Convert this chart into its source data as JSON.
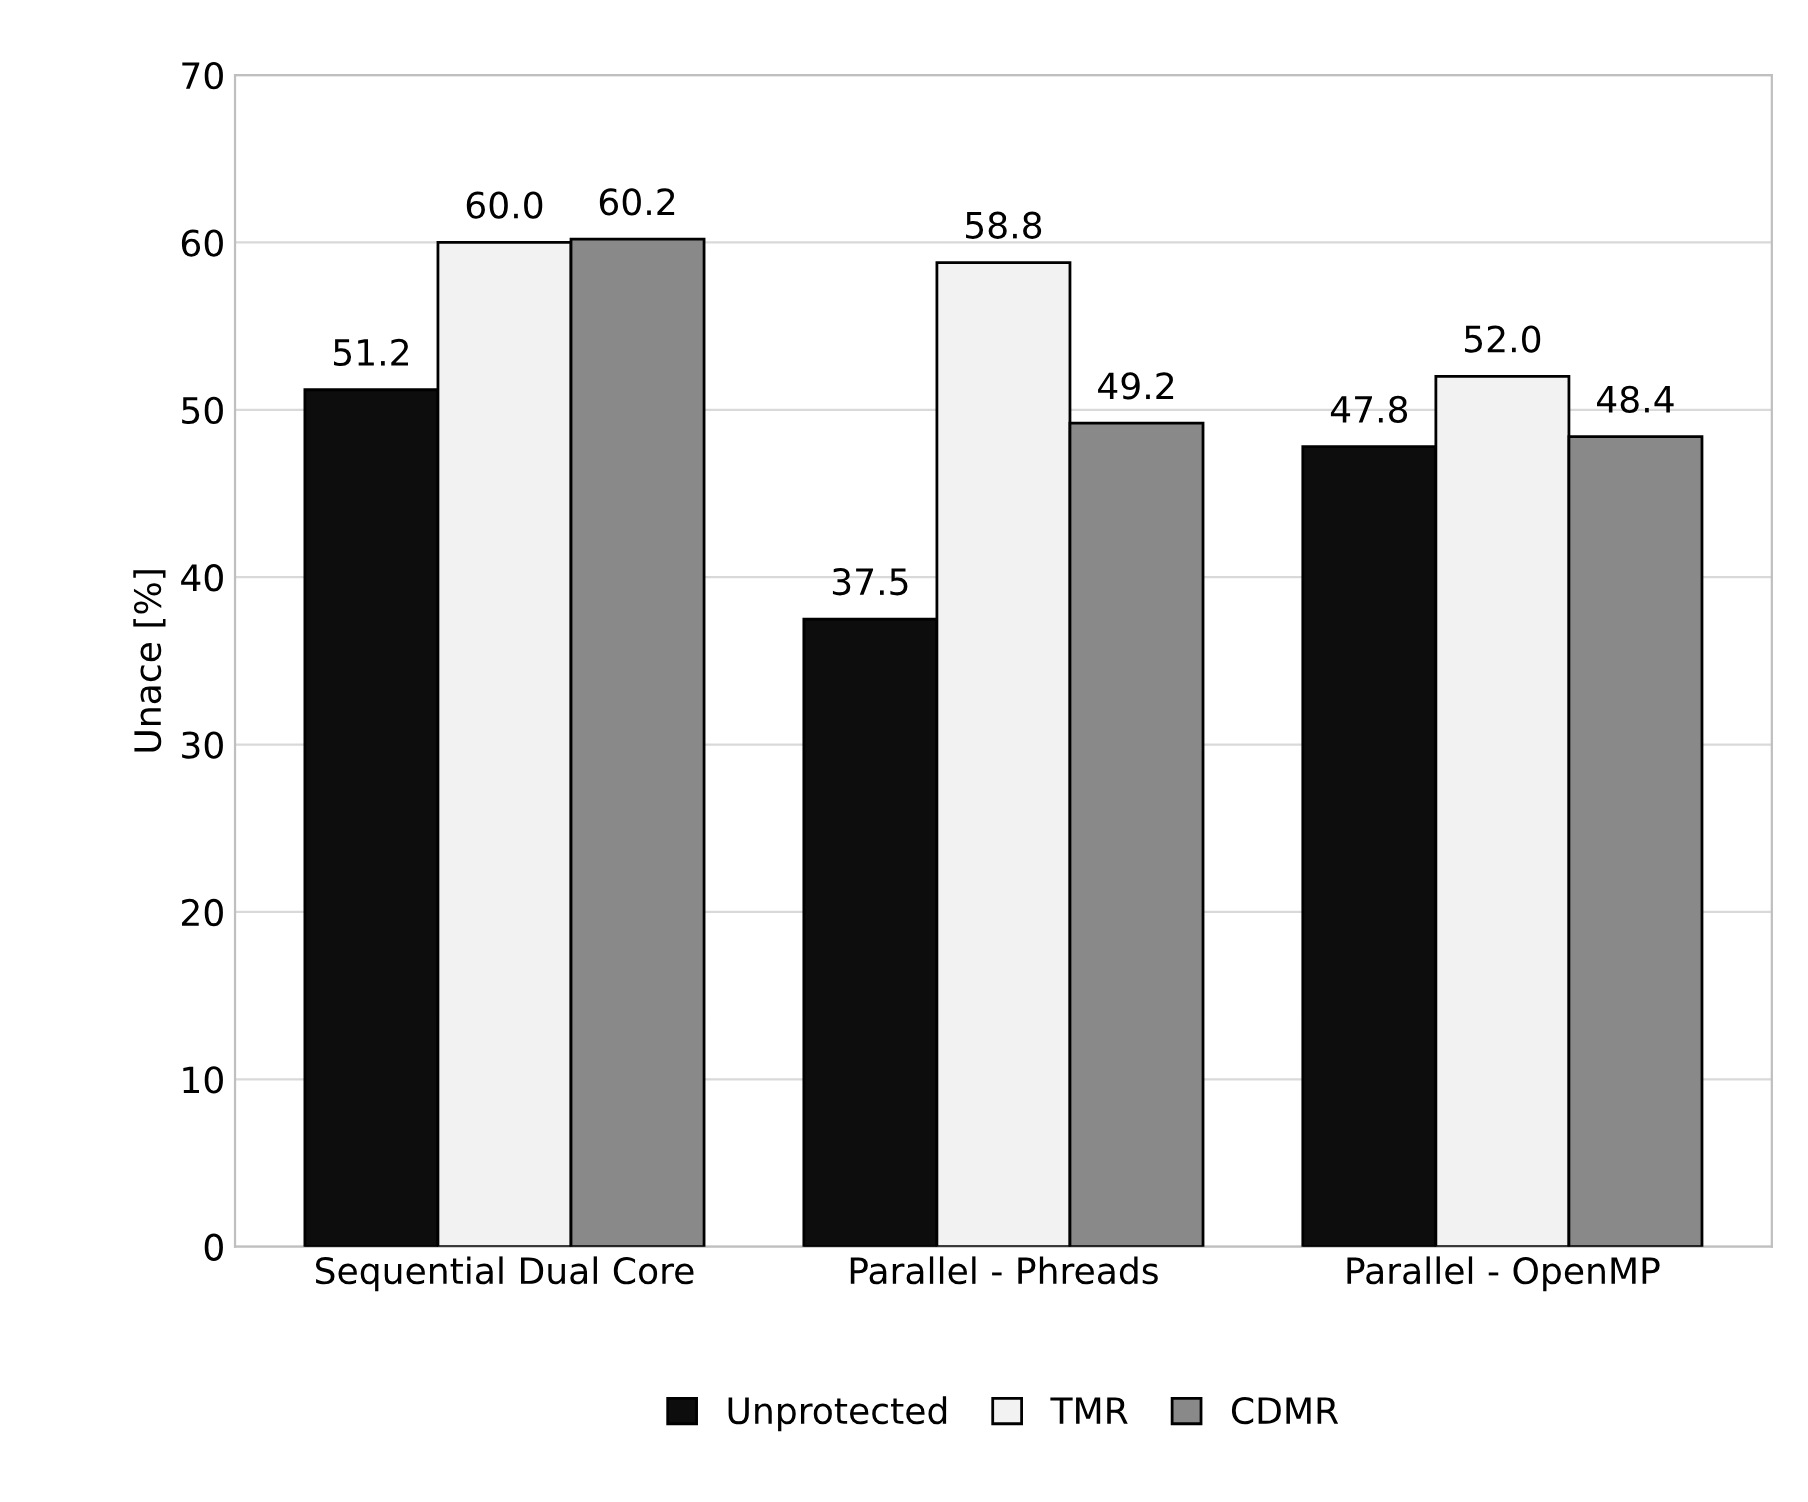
{
  "chart_data": {
    "type": "bar",
    "ylabel": "Unace [%]",
    "categories": [
      "Sequential Dual Core",
      "Parallel - Phreads",
      "Parallel - OpenMP"
    ],
    "series": [
      {
        "name": "Unprotected",
        "color": "#0d0d0d",
        "values": [
          51.2,
          37.5,
          47.8
        ]
      },
      {
        "name": "TMR",
        "color": "#f2f2f2",
        "values": [
          60.0,
          58.8,
          52.0
        ]
      },
      {
        "name": "CDMR",
        "color": "#898989",
        "values": [
          60.2,
          49.2,
          48.4
        ]
      }
    ],
    "value_labels": [
      [
        "51.2",
        "37.5",
        "47.8"
      ],
      [
        "60.0",
        "58.8",
        "52.0"
      ],
      [
        "60.2",
        "49.2",
        "48.4"
      ]
    ],
    "ylim": [
      0,
      70
    ],
    "yticks": [
      0,
      10,
      20,
      30,
      40,
      50,
      60,
      70
    ],
    "grid": "y",
    "legend": "bottom"
  }
}
